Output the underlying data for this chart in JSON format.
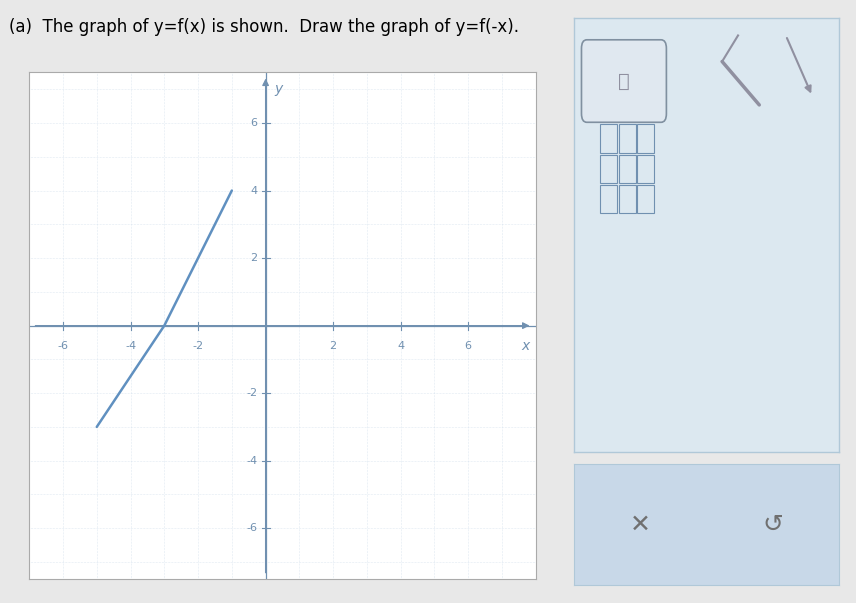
{
  "title": "(a)  The graph of y=f(x) is shown.  Draw the graph of y=f(-x).",
  "title_fontsize": 12,
  "xlim": [
    -7,
    8
  ],
  "ylim": [
    -7.5,
    7.5
  ],
  "xticks": [
    -6,
    -4,
    -2,
    2,
    4,
    6
  ],
  "yticks": [
    -6,
    -4,
    -2,
    2,
    4,
    6
  ],
  "grid_color": "#c8d8e8",
  "axis_color": "#7090b0",
  "line_color": "#6090c0",
  "line_width": 1.8,
  "fx_points": [
    [
      -5,
      -3
    ],
    [
      -3,
      0
    ],
    [
      -1,
      4
    ]
  ],
  "background_color": "#e8e8e8",
  "plot_bg_color": "#ffffff",
  "plot_border_color": "#aaaaaa",
  "figure_width": 8.56,
  "figure_height": 6.03
}
